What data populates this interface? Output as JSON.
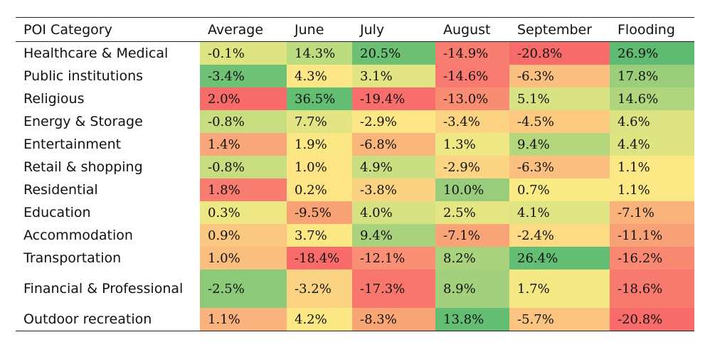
{
  "chart_data": {
    "type": "table",
    "columns": [
      "POI Category",
      "Average",
      "June",
      "July",
      "August",
      "September",
      "Flooding"
    ],
    "rows": [
      {
        "category": "Healthcare & Medical",
        "values": [
          "-0.1%",
          "14.3%",
          "20.5%",
          "-14.9%",
          "-20.8%",
          "26.9%"
        ],
        "colors": [
          "#DDE481",
          "#BDDB7F",
          "#6CC074",
          "#F77D70",
          "#F86B6B",
          "#5FBB71"
        ]
      },
      {
        "category": "Public institutions",
        "values": [
          "-3.4%",
          "4.3%",
          "3.1%",
          "-14.6%",
          "-6.3%",
          "17.8%"
        ],
        "colors": [
          "#6EC175",
          "#FDE686",
          "#E3E584",
          "#F87A70",
          "#FBC07F",
          "#9ACE7A"
        ]
      },
      {
        "category": "Religious",
        "values": [
          "2.0%",
          "36.5%",
          "-19.4%",
          "-13.0%",
          "5.1%",
          "14.6%"
        ],
        "colors": [
          "#F86B6B",
          "#63BE73",
          "#F86E6C",
          "#F98D74",
          "#D8E282",
          "#B0D57D"
        ]
      },
      {
        "category": "Energy & Storage",
        "values": [
          "-0.8%",
          "7.7%",
          "-2.9%",
          "-3.4%",
          "-4.5%",
          "4.6%"
        ],
        "colors": [
          "#C7DD80",
          "#E3E584",
          "#FCE685",
          "#FBD383",
          "#FBC980",
          "#DDE382"
        ]
      },
      {
        "category": "Entertainment",
        "values": [
          "1.4%",
          "1.9%",
          "-6.8%",
          "1.3%",
          "9.4%",
          "4.4%"
        ],
        "colors": [
          "#F9A77A",
          "#FBE885",
          "#FBB67C",
          "#EFE784",
          "#B4D67D",
          "#DFE483"
        ]
      },
      {
        "category": "Retail & shopping",
        "values": [
          "-0.8%",
          "1.0%",
          "4.9%",
          "-2.9%",
          "-6.3%",
          "1.1%"
        ],
        "colors": [
          "#C7DD80",
          "#FDE485",
          "#C9DE80",
          "#FBD583",
          "#FBC07F",
          "#FCE885"
        ]
      },
      {
        "category": "Residential",
        "values": [
          "1.8%",
          "0.2%",
          "-3.8%",
          "10.0%",
          "0.7%",
          "1.1%"
        ],
        "colors": [
          "#F87C70",
          "#FDE485",
          "#FBD282",
          "#9ACD7B",
          "#FAEB85",
          "#FCE885"
        ]
      },
      {
        "category": "Education",
        "values": [
          "0.3%",
          "-9.5%",
          "4.0%",
          "2.5%",
          "4.1%",
          "-7.1%"
        ],
        "colors": [
          "#EEE884",
          "#F9A276",
          "#D6E282",
          "#E6E583",
          "#E1E483",
          "#F9B37A"
        ]
      },
      {
        "category": "Accommodation",
        "values": [
          "0.9%",
          "3.7%",
          "9.4%",
          "-7.1%",
          "-2.4%",
          "-11.1%"
        ],
        "colors": [
          "#FBC881",
          "#FBE885",
          "#A9D27C",
          "#F8A477",
          "#FCDB84",
          "#F8A176"
        ]
      },
      {
        "category": "Transportation",
        "values": [
          "1.0%",
          "-18.4%",
          "-12.1%",
          "8.2%",
          "26.4%",
          "-16.2%"
        ],
        "colors": [
          "#FABF7F",
          "#F86B6B",
          "#F98F75",
          "#A9D27C",
          "#63BE73",
          "#F88872"
        ]
      },
      {
        "category": "Financial & Professional",
        "values": [
          "-2.5%",
          "-3.2%",
          "-17.3%",
          "8.9%",
          "1.7%",
          "-18.6%"
        ],
        "colors": [
          "#8CC978",
          "#FBD383",
          "#F8766E",
          "#A3D07C",
          "#F3E884",
          "#F8796E"
        ]
      },
      {
        "category": "Outdoor recreation",
        "values": [
          "1.1%",
          "4.2%",
          "-8.3%",
          "13.8%",
          "-5.7%",
          "-20.8%"
        ],
        "colors": [
          "#FAB37C",
          "#FBE885",
          "#F9A677",
          "#63BE73",
          "#FBC480",
          "#F86B6B"
        ]
      }
    ]
  }
}
